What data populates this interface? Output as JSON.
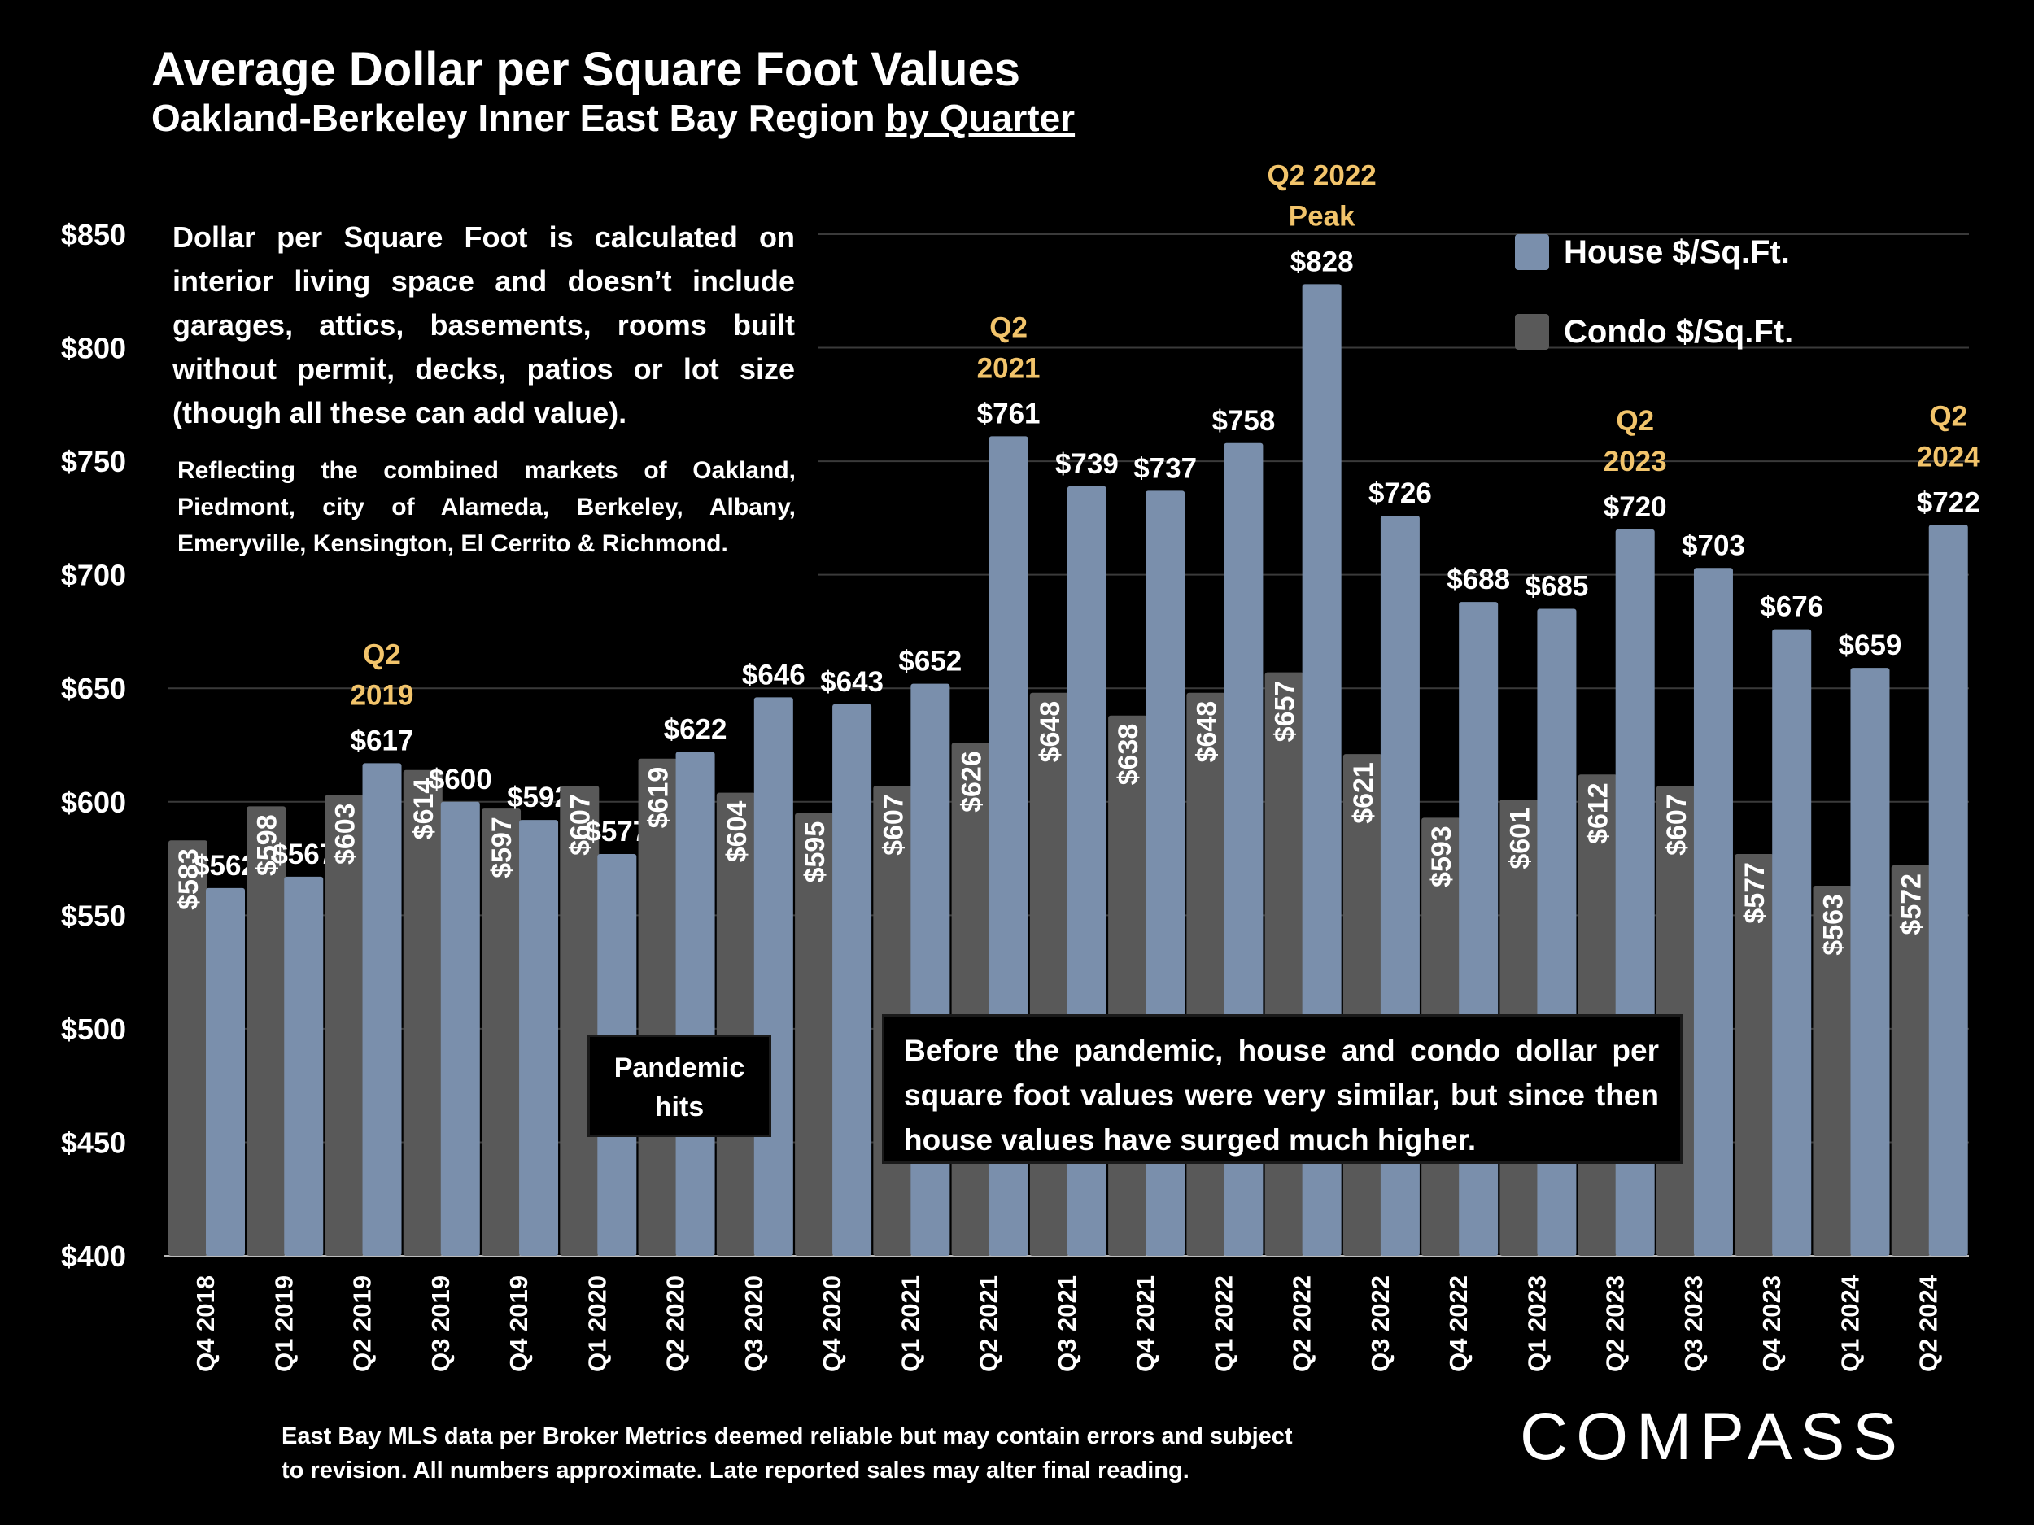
{
  "header": {
    "title": "Average Dollar per Square Foot Values",
    "subtitle_main": "Oakland-Berkeley Inner East Bay Region ",
    "subtitle_underlined": "by Quarter"
  },
  "explanation": "Dollar per Square Foot is calculated on interior living space and doesn’t include garages, attics, basements, rooms built without permit, decks, patios or lot size (though all these can add value).",
  "region_note": "Reflecting the combined markets of Oakland, Piedmont, city of Alameda, Berkeley, Albany, Emeryville, Kensington, El Cerrito & Richmond.",
  "pandemic_box": "Pandemic hits",
  "comparison_note": "Before the pandemic, house and condo dollar per square foot values were very similar, but since then house values have surged much higher.",
  "footer": {
    "line1": "East Bay MLS data per Broker Metrics deemed reliable but may contain errors and subject",
    "line2": "to revision. All numbers approximate. Late reported sales may alter final reading."
  },
  "logo": "COMPASS",
  "colors": {
    "house": "#7a8fac",
    "condo": "#595959",
    "highlight": "#f2c46b",
    "background": "#000000"
  },
  "chart_data": {
    "type": "bar",
    "categories": [
      "Q4 2018",
      "Q1 2019",
      "Q2 2019",
      "Q3 2019",
      "Q4 2019",
      "Q1 2020",
      "Q2 2020",
      "Q3 2020",
      "Q4 2020",
      "Q1 2021",
      "Q2 2021",
      "Q3 2021",
      "Q4 2021",
      "Q1 2022",
      "Q2 2022",
      "Q3 2022",
      "Q4 2022",
      "Q1 2023",
      "Q2 2023",
      "Q3 2023",
      "Q4 2023",
      "Q1 2024",
      "Q2 2024"
    ],
    "series": [
      {
        "name": "Condo $/Sq.Ft.",
        "values": [
          583,
          598,
          603,
          614,
          597,
          607,
          619,
          604,
          595,
          607,
          626,
          648,
          638,
          648,
          657,
          621,
          593,
          601,
          612,
          607,
          577,
          563,
          572
        ],
        "labels": [
          "$583",
          "$598",
          "$603",
          "$614",
          "$597",
          "$607",
          "$619",
          "$604",
          "$595",
          "$607",
          "$626",
          "$648",
          "$638",
          "$648",
          "$657",
          "$621",
          "$593",
          "$601",
          "$612",
          "$607",
          "$577",
          "$563",
          "$572"
        ]
      },
      {
        "name": "House $/Sq.Ft.",
        "values": [
          562,
          567,
          617,
          600,
          592,
          577,
          622,
          646,
          643,
          652,
          761,
          739,
          737,
          758,
          828,
          726,
          688,
          685,
          720,
          703,
          676,
          659,
          722
        ],
        "labels": [
          "$562",
          "$567",
          "$617",
          "$600",
          "$592",
          "$577",
          "$622",
          "$646",
          "$643",
          "$652",
          "$761",
          "$739",
          "$737",
          "$758",
          "$828",
          "$726",
          "$688",
          "$685",
          "$720",
          "$703",
          "$676",
          "$659",
          "$722"
        ]
      }
    ],
    "ylim": [
      400,
      850
    ],
    "yticks": [
      400,
      450,
      500,
      550,
      600,
      650,
      700,
      750,
      800,
      850
    ],
    "ytick_labels": [
      "$400",
      "$450",
      "$500",
      "$550",
      "$600",
      "$650",
      "$700",
      "$750",
      "$800",
      "$850"
    ],
    "grid": true,
    "legend": "top-right",
    "annotations": [
      {
        "category": "Q2 2019",
        "lines": [
          "Q2",
          "2019"
        ]
      },
      {
        "category": "Q2 2021",
        "lines": [
          "Q2",
          "2021"
        ]
      },
      {
        "category": "Q2 2022",
        "lines": [
          "Q2 2022",
          "Peak"
        ]
      },
      {
        "category": "Q2 2023",
        "lines": [
          "Q2",
          "2023"
        ]
      },
      {
        "category": "Q2 2024",
        "lines": [
          "Q2",
          "2024"
        ]
      }
    ]
  }
}
